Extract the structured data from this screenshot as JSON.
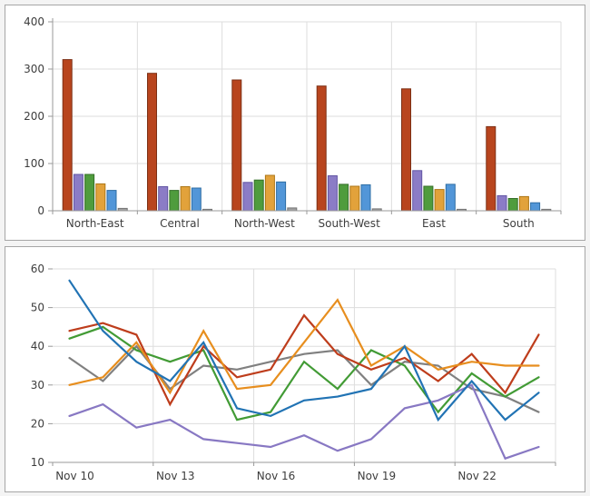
{
  "page": {
    "background": "#f4f4f4",
    "panel_border": "#a6a6a6",
    "gridline_color": "#dddddd",
    "axis_color": "#999999",
    "label_color": "#3d3d3d"
  },
  "chart_data": [
    {
      "type": "bar",
      "title": "",
      "categories": [
        "North-East",
        "Central",
        "North-West",
        "South-West",
        "East",
        "South"
      ],
      "yticks": [
        0,
        100,
        200,
        300,
        400
      ],
      "ylim": [
        0,
        400
      ],
      "grid": true,
      "legend": "none",
      "series": [
        {
          "name": "rust-red",
          "color": "#B8451E",
          "border": "#7C3015",
          "values": [
            320,
            291,
            277,
            264,
            258,
            178
          ]
        },
        {
          "name": "purple",
          "color": "#8B7CC6",
          "border": "#6256A4",
          "values": [
            77,
            51,
            60,
            74,
            85,
            32
          ]
        },
        {
          "name": "green",
          "color": "#4F9C3D",
          "border": "#356F28",
          "values": [
            77,
            43,
            65,
            56,
            52,
            26
          ]
        },
        {
          "name": "amber",
          "color": "#E2A23B",
          "border": "#AD7717",
          "values": [
            57,
            51,
            75,
            52,
            45,
            30
          ]
        },
        {
          "name": "blue",
          "color": "#5296D8",
          "border": "#2E6DA4",
          "values": [
            43,
            48,
            61,
            55,
            56,
            17
          ]
        },
        {
          "name": "gray",
          "color": "#A0A0A0",
          "border": "#747474",
          "values": [
            5,
            3,
            6,
            4,
            3,
            3
          ]
        }
      ]
    },
    {
      "type": "line",
      "title": "",
      "n_points": 15,
      "x_tick_labels": [
        "Nov 10",
        "Nov 13",
        "Nov 16",
        "Nov 19",
        "Nov 22"
      ],
      "x_label_point_indices": [
        0,
        3,
        6,
        9,
        12
      ],
      "yticks": [
        10,
        20,
        30,
        40,
        50,
        60
      ],
      "ylim": [
        10,
        60
      ],
      "grid": true,
      "legend": "none",
      "series": [
        {
          "name": "gray",
          "color": "#808080",
          "values": [
            37,
            31,
            40,
            29,
            35,
            34,
            36,
            38,
            39,
            30,
            36,
            35,
            29,
            27,
            23
          ]
        },
        {
          "name": "green",
          "color": "#429B35",
          "values": [
            42,
            45,
            39,
            36,
            39,
            21,
            23,
            36,
            29,
            39,
            35,
            23,
            33,
            27,
            32
          ]
        },
        {
          "name": "red",
          "color": "#BE3D1C",
          "values": [
            44,
            46,
            43,
            25,
            40,
            32,
            34,
            48,
            38,
            34,
            37,
            31,
            38,
            28,
            43
          ]
        },
        {
          "name": "orange",
          "color": "#E78E1E",
          "values": [
            30,
            32,
            41,
            28,
            44,
            29,
            30,
            41,
            52,
            35,
            40,
            34,
            36,
            35,
            35
          ]
        },
        {
          "name": "purple",
          "color": "#8878C3",
          "values": [
            22,
            25,
            19,
            21,
            16,
            15,
            14,
            17,
            13,
            16,
            24,
            26,
            30,
            11,
            14
          ]
        },
        {
          "name": "blue",
          "color": "#2173B4",
          "values": [
            57,
            44,
            36,
            31,
            41,
            24,
            22,
            26,
            27,
            29,
            40,
            21,
            31,
            21,
            28
          ]
        }
      ]
    }
  ]
}
